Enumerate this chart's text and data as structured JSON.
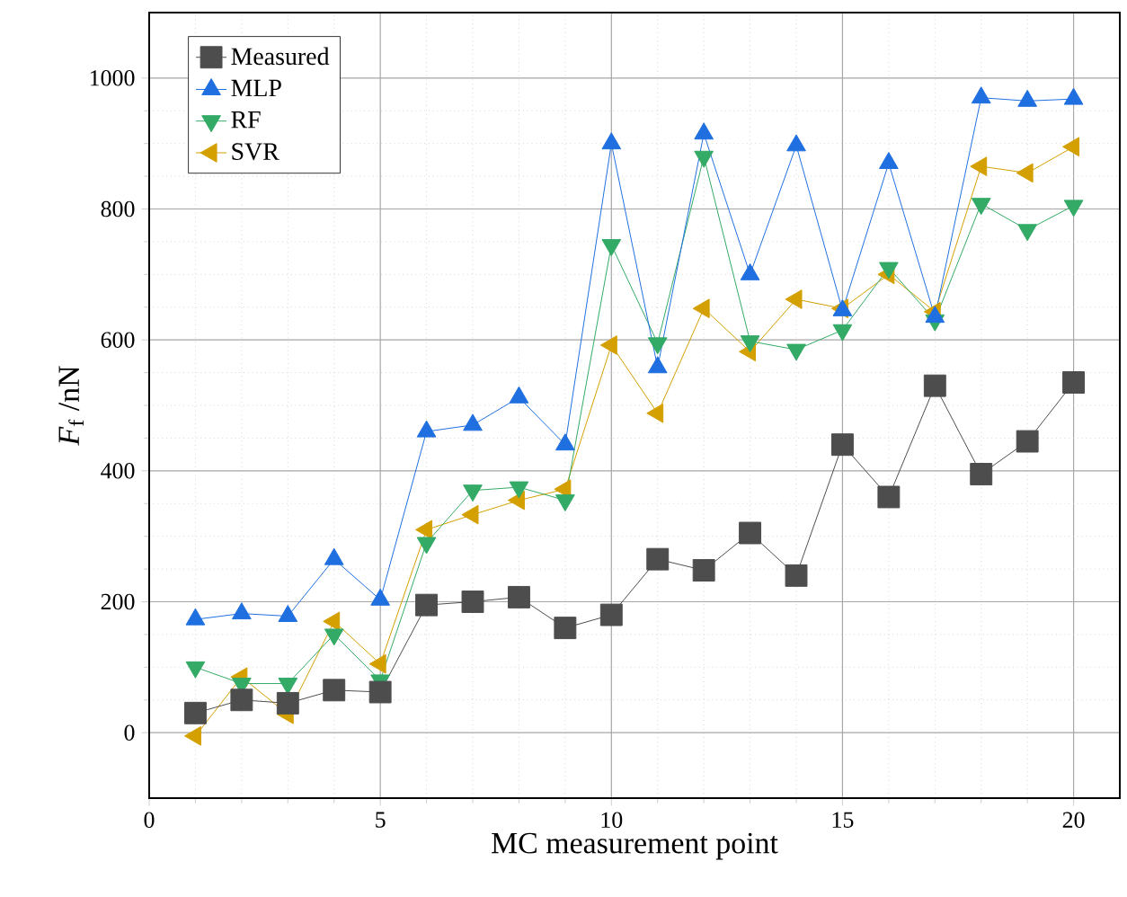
{
  "chart_data": {
    "type": "line",
    "xlabel": "MC measurement point",
    "ylabel": "*F*$_{f}$ /nN",
    "x": [
      1,
      2,
      3,
      4,
      5,
      6,
      7,
      8,
      9,
      10,
      11,
      12,
      13,
      14,
      15,
      16,
      17,
      18,
      19,
      20
    ],
    "xlim": [
      0,
      21
    ],
    "xticks": [
      0,
      5,
      10,
      15,
      20
    ],
    "ylim": [
      -100,
      1100
    ],
    "yticks": [
      0,
      200,
      400,
      600,
      800,
      1000
    ],
    "grid": true,
    "legend": "top left",
    "line_style": "solid",
    "series": [
      {
        "name": "Measured",
        "color": "#4d4d4d",
        "marker": "square",
        "values": [
          30,
          50,
          45,
          65,
          62,
          195,
          200,
          207,
          160,
          180,
          265,
          248,
          305,
          240,
          440,
          360,
          530,
          395,
          445,
          535
        ]
      },
      {
        "name": "MLP",
        "color": "#1f6fe0",
        "marker": "triangle",
        "values": [
          173,
          182,
          178,
          265,
          203,
          460,
          470,
          512,
          440,
          900,
          558,
          915,
          700,
          897,
          645,
          870,
          635,
          970,
          965,
          968
        ]
      },
      {
        "name": "RF",
        "color": "#33aa66",
        "marker": "triangle down",
        "values": [
          100,
          75,
          75,
          150,
          80,
          290,
          370,
          375,
          355,
          745,
          595,
          880,
          598,
          585,
          615,
          710,
          630,
          808,
          768,
          805
        ]
      },
      {
        "name": "SVR",
        "color": "#d4a000",
        "marker": "triangle left",
        "values": [
          -5,
          85,
          28,
          170,
          105,
          310,
          333,
          355,
          372,
          592,
          488,
          648,
          582,
          662,
          648,
          700,
          643,
          865,
          855,
          895
        ]
      }
    ]
  }
}
